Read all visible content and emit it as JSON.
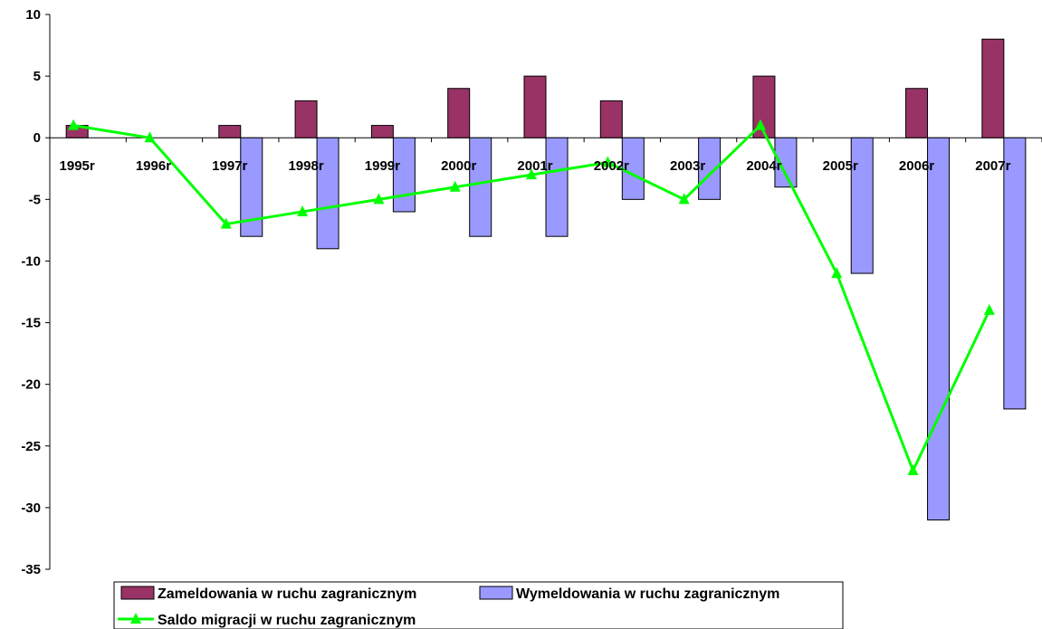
{
  "chart_data": {
    "type": "bar",
    "categories": [
      "1995r",
      "1996r",
      "1997r",
      "1998r",
      "1999r",
      "2000r",
      "2001r",
      "2002r",
      "2003r",
      "2004r",
      "2005r",
      "2006r",
      "2007r"
    ],
    "series": [
      {
        "name": "Zameldowania w ruchu zagranicznym",
        "kind": "bar",
        "color": "#993366",
        "values": [
          1,
          0,
          1,
          3,
          1,
          4,
          5,
          3,
          0,
          5,
          0,
          4,
          8
        ]
      },
      {
        "name": "Wymeldowania w ruchu zagranicznym",
        "kind": "bar",
        "color": "#9999ff",
        "values": [
          0,
          0,
          -8,
          -9,
          -6,
          -8,
          -8,
          -5,
          -5,
          -4,
          -11,
          -31,
          -22
        ]
      },
      {
        "name": "Saldo migracji w ruchu zagranicznym",
        "kind": "line",
        "color": "#00ff00",
        "marker": "triangle",
        "values": [
          1,
          0,
          -7,
          -6,
          -5,
          -4,
          -3,
          -2,
          -5,
          1,
          -11,
          -27,
          -14
        ]
      }
    ],
    "ylim": [
      -35,
      10
    ],
    "yticks": [
      10,
      5,
      0,
      -5,
      -10,
      -15,
      -20,
      -25,
      -30,
      -35
    ],
    "legend_position": "bottom-left",
    "grid": false
  }
}
